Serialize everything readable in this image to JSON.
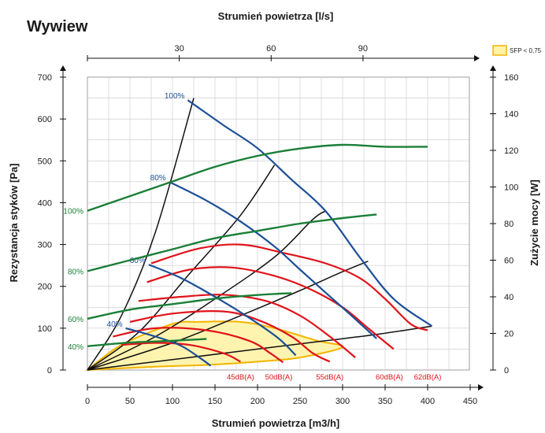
{
  "chart_data": {
    "type": "line",
    "title": "Wywiew",
    "xlabel": "Strumień powietrza [m3/h]",
    "x2label": "Strumień powietrza [l/s]",
    "ylabel": "Rezystancja styków [Pa]",
    "y2label": "Zużycie mocy [W]",
    "xlim": [
      0,
      450
    ],
    "ylim": [
      0,
      700
    ],
    "y2lim": [
      0,
      160
    ],
    "x_ticks": [
      "0",
      "50",
      "100",
      "150",
      "200",
      "250",
      "300",
      "350",
      "400",
      "450"
    ],
    "y_ticks": [
      "0",
      "100",
      "200",
      "300",
      "400",
      "500",
      "600",
      "700"
    ],
    "x2_ticks": [
      {
        "label": "30",
        "m3h": 108
      },
      {
        "label": "60",
        "m3h": 216
      },
      {
        "label": "90",
        "m3h": 324
      }
    ],
    "y2_ticks": [
      "0",
      "20",
      "40",
      "60",
      "80",
      "100",
      "120",
      "140",
      "160"
    ],
    "legend": {
      "label": "SFP < 0,75",
      "position": "top-right",
      "color": "#fff3a6",
      "border": "#f3b400"
    },
    "colors": {
      "fan": "#1c4f96",
      "power": "#1a7f37",
      "noise": "#e0131a",
      "system": "#111111",
      "sfp": "#f3b400"
    },
    "fan_curves": [
      {
        "label": "100%",
        "points": [
          [
            118,
            645
          ],
          [
            160,
            585
          ],
          [
            200,
            530
          ],
          [
            240,
            455
          ],
          [
            280,
            380
          ],
          [
            320,
            270
          ],
          [
            360,
            170
          ],
          [
            405,
            105
          ]
        ]
      },
      {
        "label": "80%",
        "points": [
          [
            96,
            450
          ],
          [
            140,
            405
          ],
          [
            180,
            355
          ],
          [
            220,
            295
          ],
          [
            250,
            240
          ],
          [
            280,
            185
          ],
          [
            305,
            140
          ],
          [
            340,
            75
          ]
        ]
      },
      {
        "label": "60%",
        "points": [
          [
            72,
            252
          ],
          [
            110,
            220
          ],
          [
            150,
            175
          ],
          [
            190,
            125
          ],
          [
            225,
            75
          ],
          [
            245,
            35
          ]
        ]
      },
      {
        "label": "40%",
        "points": [
          [
            45,
            100
          ],
          [
            80,
            80
          ],
          [
            110,
            58
          ],
          [
            135,
            25
          ],
          [
            145,
            10
          ]
        ]
      }
    ],
    "power_curves": [
      {
        "label": "100%",
        "points": [
          [
            0,
            87
          ],
          [
            50,
            95
          ],
          [
            100,
            103
          ],
          [
            150,
            111
          ],
          [
            200,
            117
          ],
          [
            250,
            121
          ],
          [
            300,
            123
          ],
          [
            350,
            122
          ],
          [
            400,
            122
          ]
        ]
      },
      {
        "label": "80%",
        "points": [
          [
            0,
            54
          ],
          [
            50,
            60
          ],
          [
            100,
            66
          ],
          [
            150,
            72
          ],
          [
            200,
            76
          ],
          [
            250,
            80
          ],
          [
            300,
            83
          ],
          [
            340,
            85
          ]
        ]
      },
      {
        "label": "60%",
        "points": [
          [
            0,
            28
          ],
          [
            50,
            33
          ],
          [
            100,
            36
          ],
          [
            150,
            39
          ],
          [
            200,
            41
          ],
          [
            240,
            42
          ]
        ]
      },
      {
        "label": "40%",
        "points": [
          [
            0,
            13
          ],
          [
            50,
            15
          ],
          [
            100,
            16
          ],
          [
            140,
            17
          ]
        ]
      }
    ],
    "noise_curves": [
      {
        "label": "45dB(A)",
        "points": [
          [
            40,
            60
          ],
          [
            80,
            65
          ],
          [
            120,
            60
          ],
          [
            160,
            40
          ],
          [
            180,
            20
          ]
        ]
      },
      {
        "label": "50dB(A)",
        "points": [
          [
            30,
            80
          ],
          [
            80,
            100
          ],
          [
            140,
            95
          ],
          [
            190,
            70
          ],
          [
            215,
            40
          ],
          [
            230,
            18
          ]
        ]
      },
      {
        "label": "",
        "points": [
          [
            50,
            115
          ],
          [
            100,
            135
          ],
          [
            160,
            140
          ],
          [
            200,
            120
          ],
          [
            240,
            80
          ],
          [
            265,
            40
          ],
          [
            285,
            20
          ]
        ]
      },
      {
        "label": "55dB(A)",
        "points": [
          [
            60,
            165
          ],
          [
            110,
            175
          ],
          [
            160,
            180
          ],
          [
            210,
            165
          ],
          [
            250,
            130
          ],
          [
            285,
            80
          ],
          [
            315,
            30
          ]
        ]
      },
      {
        "label": "",
        "points": [
          [
            70,
            210
          ],
          [
            120,
            240
          ],
          [
            170,
            245
          ],
          [
            220,
            225
          ],
          [
            260,
            195
          ],
          [
            300,
            150
          ],
          [
            330,
            100
          ],
          [
            360,
            50
          ]
        ]
      },
      {
        "label": "60dB(A)",
        "points": [
          [
            75,
            255
          ],
          [
            130,
            290
          ],
          [
            180,
            300
          ],
          [
            230,
            280
          ],
          [
            280,
            255
          ],
          [
            320,
            220
          ],
          [
            350,
            170
          ],
          [
            380,
            110
          ],
          [
            400,
            95
          ]
        ]
      }
    ],
    "noise_labels": [
      {
        "label": "45dB(A)",
        "x": 180
      },
      {
        "label": "50dB(A)",
        "x": 225
      },
      {
        "label": "55dB(A)",
        "x": 285
      },
      {
        "label": "60dB(A)",
        "x": 355
      },
      {
        "label": "62dB(A)",
        "x": 400
      }
    ],
    "system_curves": [
      {
        "points": [
          [
            0,
            0
          ],
          [
            40,
            130
          ],
          [
            80,
            330
          ],
          [
            125,
            650
          ]
        ]
      },
      {
        "points": [
          [
            0,
            0
          ],
          [
            60,
            90
          ],
          [
            120,
            230
          ],
          [
            180,
            370
          ],
          [
            220,
            490
          ]
        ]
      },
      {
        "points": [
          [
            0,
            0
          ],
          [
            80,
            80
          ],
          [
            150,
            170
          ],
          [
            220,
            270
          ],
          [
            265,
            360
          ],
          [
            280,
            380
          ]
        ]
      },
      {
        "points": [
          [
            0,
            0
          ],
          [
            100,
            65
          ],
          [
            180,
            130
          ],
          [
            250,
            190
          ],
          [
            300,
            235
          ],
          [
            330,
            260
          ]
        ]
      },
      {
        "points": [
          [
            0,
            0
          ],
          [
            120,
            30
          ],
          [
            200,
            50
          ],
          [
            280,
            70
          ],
          [
            340,
            85
          ],
          [
            405,
            105
          ]
        ]
      }
    ],
    "sfp_region": [
      [
        0,
        0
      ],
      [
        40,
        60
      ],
      [
        100,
        110
      ],
      [
        130,
        115
      ],
      [
        180,
        115
      ],
      [
        220,
        100
      ],
      [
        270,
        70
      ],
      [
        300,
        55
      ],
      [
        250,
        30
      ],
      [
        200,
        20
      ],
      [
        140,
        12
      ],
      [
        80,
        8
      ],
      [
        0,
        0
      ]
    ]
  }
}
